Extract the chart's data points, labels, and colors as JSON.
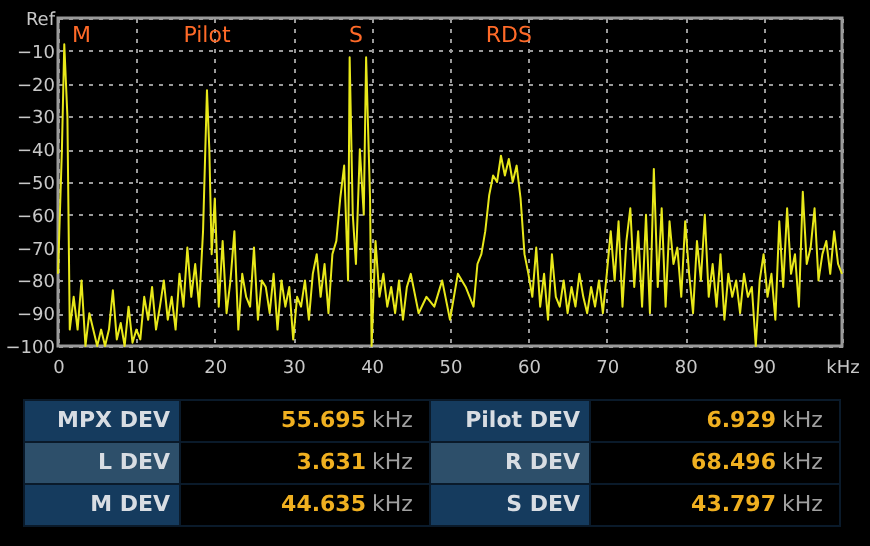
{
  "chart_data": {
    "type": "line",
    "x": [
      0,
      0.5,
      0.8,
      1.2,
      1.5,
      2,
      2.5,
      3,
      3.5,
      4,
      5,
      5.5,
      6,
      6.5,
      7,
      7.5,
      8,
      8.5,
      9,
      9.5,
      10,
      10.5,
      11,
      11.5,
      12,
      12.5,
      13,
      13.5,
      14,
      14.5,
      15,
      15.5,
      16,
      16.5,
      17,
      17.5,
      18,
      18.5,
      19,
      19.3,
      19.6,
      20,
      20.5,
      21,
      21.5,
      22,
      22.5,
      23,
      23.5,
      24,
      24.5,
      25,
      25.5,
      26,
      26.5,
      27,
      27.5,
      28,
      28.5,
      29,
      29.5,
      30,
      30.5,
      31,
      31.5,
      32,
      32.5,
      33,
      33.5,
      34,
      34.5,
      35,
      35.5,
      36,
      36.5,
      37,
      37.2,
      37.6,
      38,
      38.5,
      39,
      39.3,
      39.8,
      40,
      40.5,
      41,
      41.5,
      42,
      42.5,
      43,
      43.5,
      44,
      44.5,
      45,
      46,
      47,
      48,
      49,
      50,
      51,
      52,
      53,
      53.5,
      54,
      54.5,
      55,
      55.5,
      56,
      56.5,
      57,
      57.5,
      58,
      58.5,
      59,
      59.5,
      60,
      60.5,
      61,
      61.5,
      62,
      62.5,
      63,
      63.5,
      64,
      64.5,
      65,
      65.5,
      66,
      66.5,
      67,
      67.5,
      68,
      68.5,
      69,
      69.5,
      70,
      70.5,
      71,
      71.5,
      72,
      72.5,
      73,
      73.5,
      74,
      74.5,
      75,
      75.5,
      76,
      76.5,
      77,
      77.5,
      78,
      78.5,
      79,
      79.5,
      80,
      80.5,
      81,
      81.5,
      82,
      82.5,
      83,
      83.5,
      84,
      84.5,
      85,
      85.5,
      86,
      86.5,
      87,
      87.5,
      88,
      88.5,
      89,
      89.5,
      90,
      90.5,
      91,
      91.5,
      92,
      92.5,
      93,
      93.5,
      94,
      94.5,
      95,
      95.5,
      96,
      96.5,
      97,
      97.5,
      98,
      98.5,
      99,
      99.5,
      100
    ],
    "series": [
      {
        "color": "#e8e81a",
        "values": [
          -78,
          -40,
          -8,
          -30,
          -95,
          -85,
          -95,
          -80,
          -100,
          -90,
          -100,
          -95,
          -100,
          -95,
          -83,
          -98,
          -93,
          -100,
          -88,
          -99,
          -95,
          -98,
          -85,
          -92,
          -82,
          -95,
          -88,
          -80,
          -92,
          -85,
          -95,
          -78,
          -88,
          -70,
          -85,
          -75,
          -88,
          -65,
          -22,
          -40,
          -72,
          -55,
          -88,
          -68,
          -90,
          -80,
          -65,
          -95,
          -78,
          -85,
          -88,
          -70,
          -92,
          -80,
          -82,
          -90,
          -78,
          -95,
          -80,
          -88,
          -82,
          -98,
          -85,
          -88,
          -80,
          -92,
          -78,
          -72,
          -85,
          -75,
          -90,
          -72,
          -68,
          -55,
          -45,
          -80,
          -12,
          -60,
          -75,
          -40,
          -60,
          -12,
          -55,
          -100,
          -68,
          -85,
          -78,
          -88,
          -82,
          -90,
          -80,
          -92,
          -82,
          -78,
          -90,
          -85,
          -88,
          -80,
          -92,
          -78,
          -82,
          -88,
          -75,
          -72,
          -65,
          -54,
          -48,
          -50,
          -42,
          -48,
          -43,
          -50,
          -45,
          -55,
          -72,
          -78,
          -85,
          -70,
          -88,
          -78,
          -92,
          -72,
          -85,
          -88,
          -80,
          -90,
          -82,
          -88,
          -78,
          -85,
          -90,
          -82,
          -88,
          -80,
          -90,
          -78,
          -65,
          -80,
          -62,
          -88,
          -68,
          -58,
          -82,
          -65,
          -88,
          -60,
          -90,
          -46,
          -82,
          -58,
          -88,
          -62,
          -75,
          -70,
          -85,
          -62,
          -78,
          -90,
          -68,
          -80,
          -60,
          -85,
          -75,
          -88,
          -72,
          -92,
          -78,
          -85,
          -80,
          -90,
          -78,
          -85,
          -82,
          -100,
          -80,
          -72,
          -85,
          -78,
          -92,
          -62,
          -82,
          -58,
          -78,
          -72,
          -88,
          -53,
          -75,
          -70,
          -58,
          -80,
          -72,
          -68,
          -78,
          -65,
          -75,
          -78
        ]
      }
    ],
    "xlim": [
      0,
      100
    ],
    "xticks": [
      0,
      10,
      20,
      30,
      40,
      50,
      60,
      70,
      80,
      90,
      {
        "value": 100,
        "label": "kHz"
      }
    ],
    "ylim": [
      -100,
      0
    ],
    "yticks": [
      {
        "value": 0,
        "label": "Ref"
      },
      -10,
      -20,
      -30,
      -40,
      -50,
      -60,
      -70,
      -80,
      -90,
      -100
    ],
    "grid": true,
    "annotations": [
      "M",
      "Pilot",
      "S",
      "RDS",
      "MPX DEV 55.695 kHz",
      "Pilot DEV 6.929 kHz",
      "L DEV 3.631 kHz",
      "R DEV 68.496 kHz",
      "M DEV 44.635 kHz",
      "S DEV 43.797 kHz"
    ]
  }
}
